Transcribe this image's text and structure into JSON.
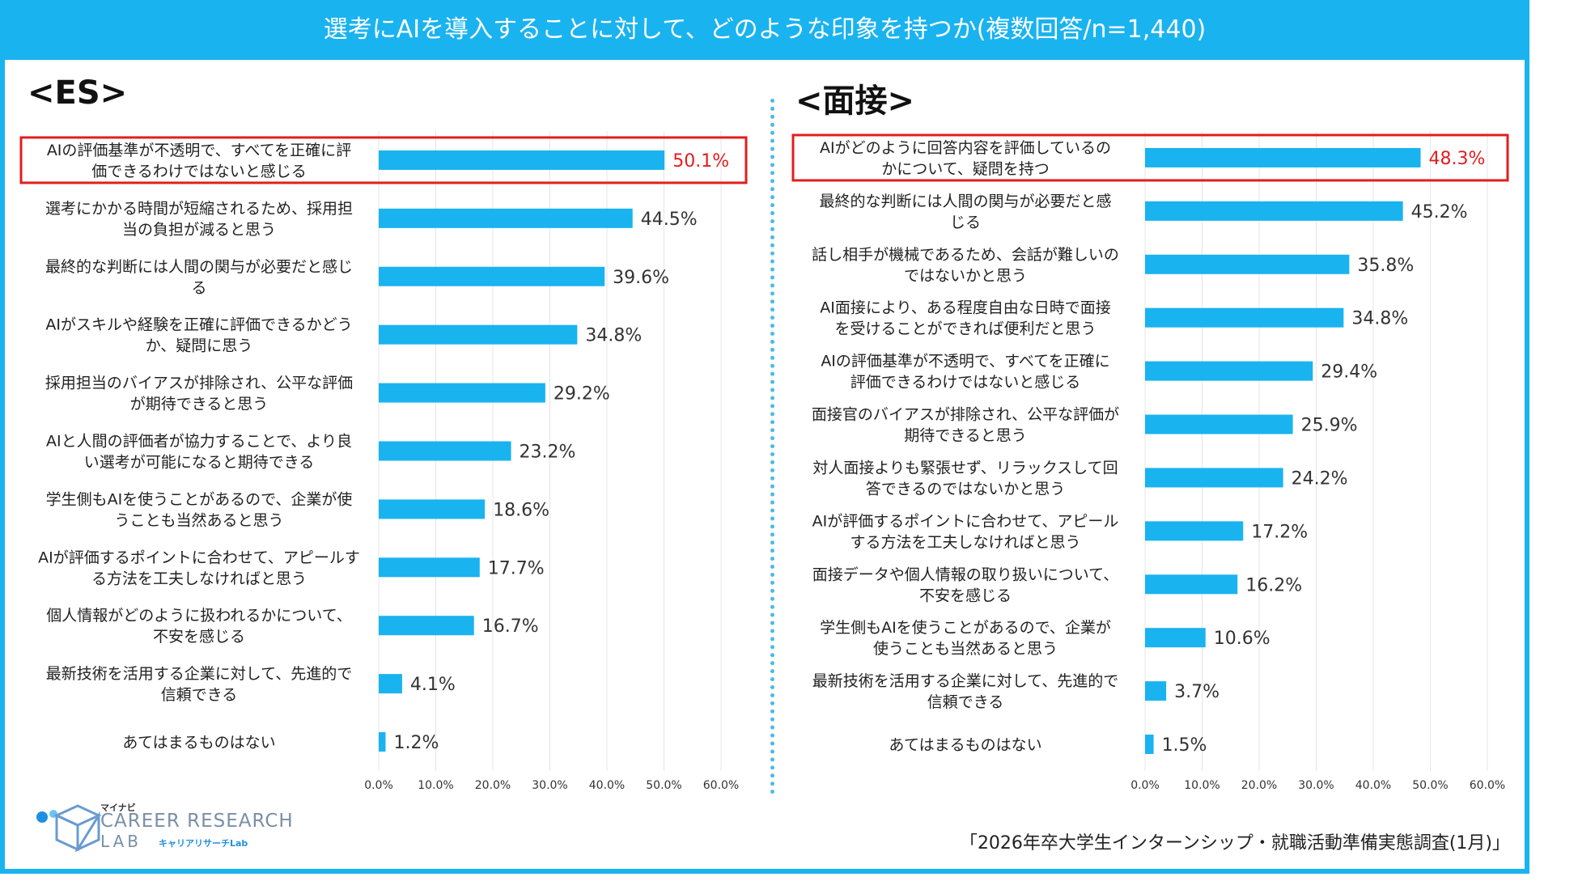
{
  "title": "選考にAIを導入することに対して、どのような印象を持つか(複数回答/n=1,440)",
  "source": "「2026年卒大学生インターンシップ・就職活動準備実態調査(1月)」",
  "logo": {
    "top": "マイナビ",
    "line1": "CAREER RESEARCH",
    "line2": "LAB",
    "sub": "キャリアリサーチLab"
  },
  "colors": {
    "bar": "#19b3f0",
    "highlight": "#e11e1e",
    "frame": "#19b3f0"
  },
  "chart_data": [
    {
      "type": "bar",
      "orientation": "horizontal",
      "title": "<ES>",
      "xlim": [
        0,
        60
      ],
      "xticks": [
        "0.0%",
        "10.0%",
        "20.0%",
        "30.0%",
        "40.0%",
        "50.0%",
        "60.0%"
      ],
      "highlight_index": 0,
      "categories": [
        [
          "AIの評価基準が不透明で、すべてを正確に評",
          "価できるわけではないと感じる"
        ],
        [
          "選考にかかる時間が短縮されるため、採用担",
          "当の負担が減ると思う"
        ],
        [
          "最終的な判断には人間の関与が必要だと感じ",
          "る"
        ],
        [
          "AIがスキルや経験を正確に評価できるかどう",
          "か、疑問に思う"
        ],
        [
          "採用担当のバイアスが排除され、公平な評価",
          "が期待できると思う"
        ],
        [
          "AIと人間の評価者が協力することで、より良",
          "い選考が可能になると期待できる"
        ],
        [
          "学生側もAIを使うことがあるので、企業が使",
          "うことも当然あると思う"
        ],
        [
          "AIが評価するポイントに合わせて、アピールす",
          "る方法を工夫しなければと思う"
        ],
        [
          "個人情報がどのように扱われるかについて、",
          "不安を感じる"
        ],
        [
          "最新技術を活用する企業に対して、先進的で",
          "信頼できる"
        ],
        [
          "あてはまるものはない"
        ]
      ],
      "values": [
        50.1,
        44.5,
        39.6,
        34.8,
        29.2,
        23.2,
        18.6,
        17.7,
        16.7,
        4.1,
        1.2
      ],
      "labels": [
        "50.1%",
        "44.5%",
        "39.6%",
        "34.8%",
        "29.2%",
        "23.2%",
        "18.6%",
        "17.7%",
        "16.7%",
        "4.1%",
        "1.2%"
      ]
    },
    {
      "type": "bar",
      "orientation": "horizontal",
      "title": "<面接>",
      "xlim": [
        0,
        60
      ],
      "xticks": [
        "0.0%",
        "10.0%",
        "20.0%",
        "30.0%",
        "40.0%",
        "50.0%",
        "60.0%"
      ],
      "highlight_index": 0,
      "categories": [
        [
          "AIがどのように回答内容を評価しているの",
          "かについて、疑問を持つ"
        ],
        [
          "最終的な判断には人間の関与が必要だと感",
          "じる"
        ],
        [
          "話し相手が機械であるため、会話が難しいの",
          "ではないかと思う"
        ],
        [
          "AI面接により、ある程度自由な日時で面接",
          "を受けることができれば便利だと思う"
        ],
        [
          "AIの評価基準が不透明で、すべてを正確に",
          "評価できるわけではないと感じる"
        ],
        [
          "面接官のバイアスが排除され、公平な評価が",
          "期待できると思う"
        ],
        [
          "対人面接よりも緊張せず、リラックスして回",
          "答できるのではないかと思う"
        ],
        [
          "AIが評価するポイントに合わせて、アピール",
          "する方法を工夫しなければと思う"
        ],
        [
          "面接データや個人情報の取り扱いについて、",
          "不安を感じる"
        ],
        [
          "学生側もAIを使うことがあるので、企業が",
          "使うことも当然あると思う"
        ],
        [
          "最新技術を活用する企業に対して、先進的で",
          "信頼できる"
        ],
        [
          "あてはまるものはない"
        ]
      ],
      "values": [
        48.3,
        45.2,
        35.8,
        34.8,
        29.4,
        25.9,
        24.2,
        17.2,
        16.2,
        10.6,
        3.7,
        1.5
      ],
      "labels": [
        "48.3%",
        "45.2%",
        "35.8%",
        "34.8%",
        "29.4%",
        "25.9%",
        "24.2%",
        "17.2%",
        "16.2%",
        "10.6%",
        "3.7%",
        "1.5%"
      ]
    }
  ]
}
